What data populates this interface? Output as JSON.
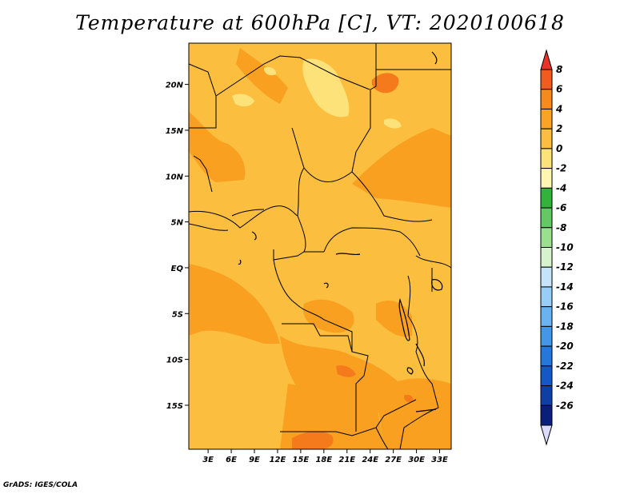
{
  "title": "Temperature at 600hPa [C], VT: 2020100618",
  "credit": "GrADS: IGES/COLA",
  "map": {
    "lat_labels": [
      "20N",
      "15N",
      "10N",
      "5N",
      "EQ",
      "5S",
      "10S",
      "15S"
    ],
    "lat_values": [
      20,
      15,
      10,
      5,
      0,
      -5,
      -10,
      -15
    ],
    "lon_labels": [
      "3E",
      "6E",
      "9E",
      "12E",
      "15E",
      "18E",
      "21E",
      "24E",
      "27E",
      "30E",
      "33E"
    ],
    "lon_values": [
      3,
      6,
      9,
      12,
      15,
      18,
      21,
      24,
      27,
      30,
      33
    ],
    "lon_range": [
      0.5,
      34.5
    ],
    "lat_range": [
      -19.8,
      24.5
    ],
    "dominant_fill_color": "#fbbe3f",
    "warm_fill_color": "#f9a020",
    "hot_fill_color": "#f47a1c",
    "cool_fill_color": "#fde27a"
  },
  "colorbar": {
    "labels": [
      "8",
      "6",
      "4",
      "2",
      "0",
      "-2",
      "-4",
      "-6",
      "-8",
      "-10",
      "-12",
      "-14",
      "-16",
      "-18",
      "-20",
      "-22",
      "-24",
      "-26"
    ],
    "colors": [
      "#e8322a",
      "#f25b1e",
      "#f78a1a",
      "#f9a425",
      "#fbbe3f",
      "#fde27a",
      "#fef6b1",
      "#33b33b",
      "#65c865",
      "#9ae08f",
      "#d6f3ce",
      "#c5e4fb",
      "#98cdf6",
      "#6bb2f0",
      "#4496e8",
      "#2577dc",
      "#1557c7",
      "#0f3fa6",
      "#0a1f7a",
      "#dcdcfa"
    ]
  }
}
